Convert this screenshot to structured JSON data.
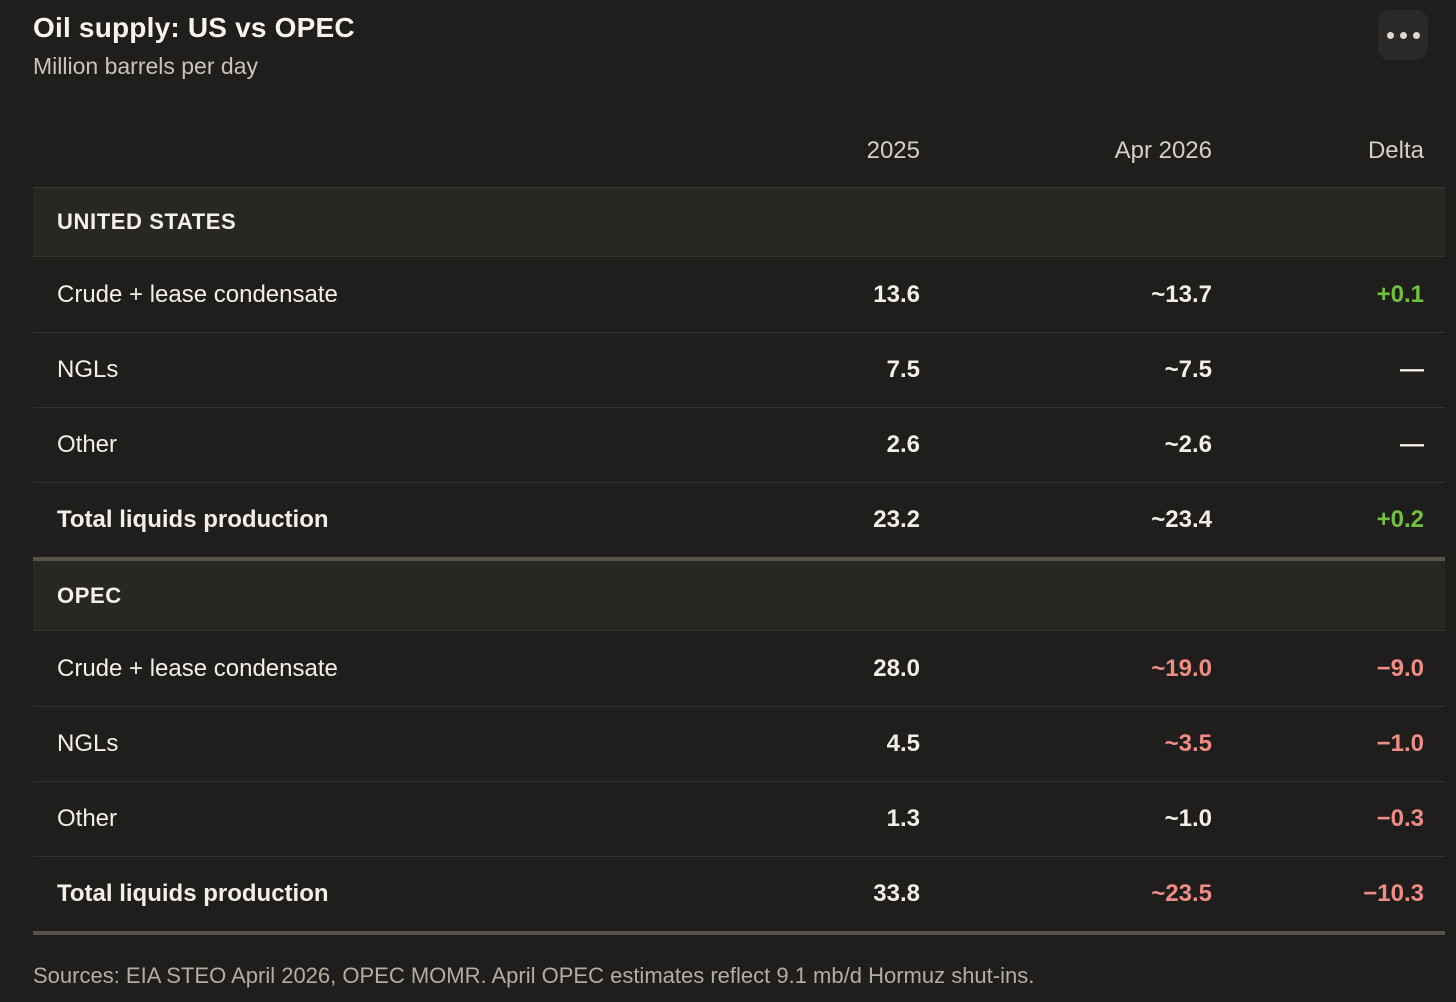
{
  "header": {
    "title": "Oil supply: US vs OPEC",
    "subtitle": "Million barrels per day",
    "menu_icon": "ellipsis-icon"
  },
  "columns": {
    "c1": "2025",
    "c2": "Apr 2026",
    "c3": "Delta"
  },
  "sections": [
    {
      "name": "UNITED STATES",
      "rows": [
        {
          "label": "Crude + lease condensate",
          "values": {
            "y2025": "13.6",
            "apr2026": "~13.7",
            "delta": "+0.1"
          },
          "tones": {
            "y2025": "neutral",
            "apr2026": "neutral",
            "delta": "pos"
          }
        },
        {
          "label": "NGLs",
          "values": {
            "y2025": "7.5",
            "apr2026": "~7.5",
            "delta": "—"
          },
          "tones": {
            "y2025": "neutral",
            "apr2026": "neutral",
            "delta": "neutral"
          }
        },
        {
          "label": "Other",
          "values": {
            "y2025": "2.6",
            "apr2026": "~2.6",
            "delta": "—"
          },
          "tones": {
            "y2025": "neutral",
            "apr2026": "neutral",
            "delta": "neutral"
          }
        },
        {
          "label": "Total liquids production",
          "values": {
            "y2025": "23.2",
            "apr2026": "~23.4",
            "delta": "+0.2"
          },
          "tones": {
            "y2025": "neutral",
            "apr2026": "neutral",
            "delta": "pos"
          }
        }
      ]
    },
    {
      "name": "OPEC",
      "rows": [
        {
          "label": "Crude + lease condensate",
          "values": {
            "y2025": "28.0",
            "apr2026": "~19.0",
            "delta": "−9.0"
          },
          "tones": {
            "y2025": "neutral",
            "apr2026": "neg",
            "delta": "neg"
          }
        },
        {
          "label": "NGLs",
          "values": {
            "y2025": "4.5",
            "apr2026": "~3.5",
            "delta": "−1.0"
          },
          "tones": {
            "y2025": "neutral",
            "apr2026": "neg",
            "delta": "neg"
          }
        },
        {
          "label": "Other",
          "values": {
            "y2025": "1.3",
            "apr2026": "~1.0",
            "delta": "−0.3"
          },
          "tones": {
            "y2025": "neutral",
            "apr2026": "neutral",
            "delta": "neg"
          }
        },
        {
          "label": "Total liquids production",
          "values": {
            "y2025": "33.8",
            "apr2026": "~23.5",
            "delta": "−10.3"
          },
          "tones": {
            "y2025": "neutral",
            "apr2026": "neg",
            "delta": "neg"
          }
        }
      ]
    }
  ],
  "footer": {
    "source": "Sources: EIA STEO April 2026, OPEC MOMR. April OPEC estimates reflect 9.1 mb/d Hormuz shut-ins."
  },
  "colors": {
    "background": "#201e1c",
    "section_band": "#292724",
    "positive": "#72c13e",
    "negative": "#ef8c85",
    "neutral_text": "#f2efe8",
    "muted_text": "#b2ada2",
    "thick_rule": "#56534a"
  },
  "chart_data": {
    "type": "table",
    "title": "Oil supply: US vs OPEC",
    "subtitle": "Million barrels per day",
    "columns": [
      "",
      "2025",
      "Apr 2026",
      "Delta"
    ],
    "rows": [
      {
        "section": "UNITED STATES",
        "label": "Crude + lease condensate",
        "y2025": 13.6,
        "apr2026": 13.7,
        "apr2026_approx": true,
        "delta": 0.1
      },
      {
        "section": "UNITED STATES",
        "label": "NGLs",
        "y2025": 7.5,
        "apr2026": 7.5,
        "apr2026_approx": true,
        "delta": null
      },
      {
        "section": "UNITED STATES",
        "label": "Other",
        "y2025": 2.6,
        "apr2026": 2.6,
        "apr2026_approx": true,
        "delta": null
      },
      {
        "section": "UNITED STATES",
        "label": "Total liquids production",
        "y2025": 23.2,
        "apr2026": 23.4,
        "apr2026_approx": true,
        "delta": 0.2
      },
      {
        "section": "OPEC",
        "label": "Crude + lease condensate",
        "y2025": 28.0,
        "apr2026": 19.0,
        "apr2026_approx": true,
        "delta": -9.0
      },
      {
        "section": "OPEC",
        "label": "NGLs",
        "y2025": 4.5,
        "apr2026": 3.5,
        "apr2026_approx": true,
        "delta": -1.0
      },
      {
        "section": "OPEC",
        "label": "Other",
        "y2025": 1.3,
        "apr2026": 1.0,
        "apr2026_approx": true,
        "delta": -0.3
      },
      {
        "section": "OPEC",
        "label": "Total liquids production",
        "y2025": 33.8,
        "apr2026": 23.5,
        "apr2026_approx": true,
        "delta": -10.3
      }
    ],
    "source_note": "Sources: EIA STEO April 2026, OPEC MOMR. April OPEC estimates reflect 9.1 mb/d Hormuz shut-ins."
  }
}
